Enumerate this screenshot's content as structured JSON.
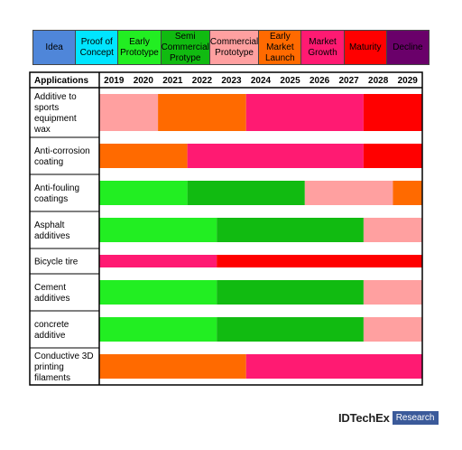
{
  "legend": [
    {
      "label": "Idea",
      "color": "#4f86d9"
    },
    {
      "label": "Proof of\nConcept",
      "color": "#00e5ff"
    },
    {
      "label": "Early\nPrototype",
      "color": "#22ee22"
    },
    {
      "label": "Semi\nCommercial\nProtype",
      "color": "#11bb11"
    },
    {
      "label": "Commercial\nPrototype",
      "color": "#ffa0a0"
    },
    {
      "label": "Early\nMarket\nLaunch",
      "color": "#ff6a00"
    },
    {
      "label": "Market\nGrowth",
      "color": "#ff1a72"
    },
    {
      "label": "Maturity",
      "color": "#ff0000"
    },
    {
      "label": "Decline",
      "color": "#6a006a"
    }
  ],
  "brand": {
    "name": "IDTechEx",
    "tag": "Research"
  },
  "chart_data": {
    "type": "table",
    "header": "Applications",
    "years": [
      "2019",
      "2020",
      "2021",
      "2022",
      "2023",
      "2024",
      "2025",
      "2026",
      "2027",
      "2028",
      "2029"
    ],
    "rows": [
      {
        "label": "Additive to\nsports\nequipment\nwax",
        "segments": [
          {
            "stage": "Commercial\nPrototype",
            "from": "2019",
            "to": "2020"
          },
          {
            "stage": "Early\nMarket\nLaunch",
            "from": "2021",
            "to": "2023"
          },
          {
            "stage": "Market\nGrowth",
            "from": "2024",
            "to": "2027"
          },
          {
            "stage": "Maturity",
            "from": "2028",
            "to": "2029"
          }
        ]
      },
      {
        "label": "Anti-corrosion\ncoating",
        "segments": [
          {
            "stage": "Early\nMarket\nLaunch",
            "from": "2019",
            "to": "2021"
          },
          {
            "stage": "Market\nGrowth",
            "from": "2022",
            "to": "2027"
          },
          {
            "stage": "Maturity",
            "from": "2028",
            "to": "2029"
          }
        ]
      },
      {
        "label": "Anti-fouling\ncoatings",
        "segments": [
          {
            "stage": "Early\nPrototype",
            "from": "2019",
            "to": "2021"
          },
          {
            "stage": "Semi\nCommercial\nProtype",
            "from": "2022",
            "to": "2025"
          },
          {
            "stage": "Commercial\nPrototype",
            "from": "2026",
            "to": "2028"
          },
          {
            "stage": "Early\nMarket\nLaunch",
            "from": "2029",
            "to": "2029"
          }
        ]
      },
      {
        "label": "Asphalt\nadditives",
        "segments": [
          {
            "stage": "Early\nPrototype",
            "from": "2019",
            "to": "2022"
          },
          {
            "stage": "Semi\nCommercial\nProtype",
            "from": "2023",
            "to": "2027"
          },
          {
            "stage": "Commercial\nPrototype",
            "from": "2028",
            "to": "2029"
          }
        ]
      },
      {
        "label": "Bicycle tire",
        "segments": [
          {
            "stage": "Market\nGrowth",
            "from": "2019",
            "to": "2022"
          },
          {
            "stage": "Maturity",
            "from": "2023",
            "to": "2029"
          }
        ]
      },
      {
        "label": "Cement\nadditives",
        "segments": [
          {
            "stage": "Early\nPrototype",
            "from": "2019",
            "to": "2022"
          },
          {
            "stage": "Semi\nCommercial\nProtype",
            "from": "2023",
            "to": "2027"
          },
          {
            "stage": "Commercial\nPrototype",
            "from": "2028",
            "to": "2029"
          }
        ]
      },
      {
        "label": "concrete\nadditive",
        "segments": [
          {
            "stage": "Early\nPrototype",
            "from": "2019",
            "to": "2022"
          },
          {
            "stage": "Semi\nCommercial\nProtype",
            "from": "2023",
            "to": "2027"
          },
          {
            "stage": "Commercial\nPrototype",
            "from": "2028",
            "to": "2029"
          }
        ]
      },
      {
        "label": "Conductive 3D\nprinting\nfilaments",
        "segments": [
          {
            "stage": "Early\nMarket\nLaunch",
            "from": "2019",
            "to": "2023"
          },
          {
            "stage": "Market\nGrowth",
            "from": "2024",
            "to": "2029"
          }
        ]
      }
    ]
  }
}
